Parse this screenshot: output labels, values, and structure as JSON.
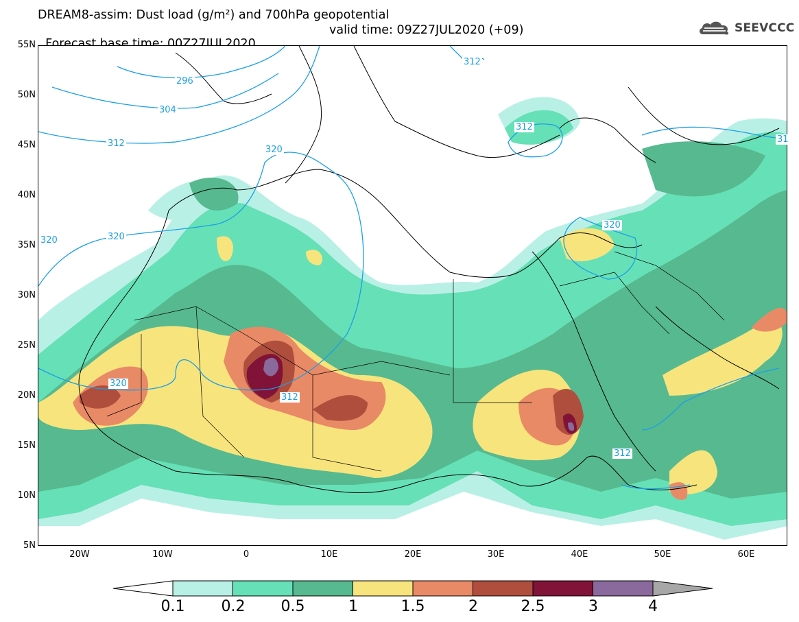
{
  "header": {
    "title_line1": "DREAM8-assim: Dust load (g/m²) and 700hPa geopotential",
    "base_time": "Forecast base time: 00Z27JUL2020",
    "valid_time": "valid time: 09Z27JUL2020 (+09)"
  },
  "logo": {
    "text": "SEEVCCC",
    "icon": "cloud-icon"
  },
  "map": {
    "lat_range": [
      5,
      55
    ],
    "lon_range": [
      -25,
      65
    ],
    "lat_labels": [
      "55N",
      "50N",
      "45N",
      "40N",
      "35N",
      "30N",
      "25N",
      "20N",
      "15N",
      "10N",
      "5N"
    ],
    "lon_labels": [
      "20W",
      "10W",
      "0",
      "10E",
      "20E",
      "30E",
      "40E",
      "50E",
      "60E"
    ],
    "contour_labels": [
      "296",
      "304",
      "312",
      "320",
      "320",
      "320",
      "320",
      "312",
      "312",
      "312",
      "320",
      "312",
      "31"
    ],
    "contour_color": "#1a9fe6"
  },
  "colorbar": {
    "labels": [
      "0.1",
      "0.2",
      "0.5",
      "1",
      "1.5",
      "2",
      "2.5",
      "3",
      "4"
    ],
    "colors": [
      "#ffffff",
      "#b9f0e6",
      "#66e0b6",
      "#57b98f",
      "#f7e47d",
      "#e98a66",
      "#b04e3e",
      "#801337",
      "#8a699c",
      "#a7a7a7"
    ]
  }
}
